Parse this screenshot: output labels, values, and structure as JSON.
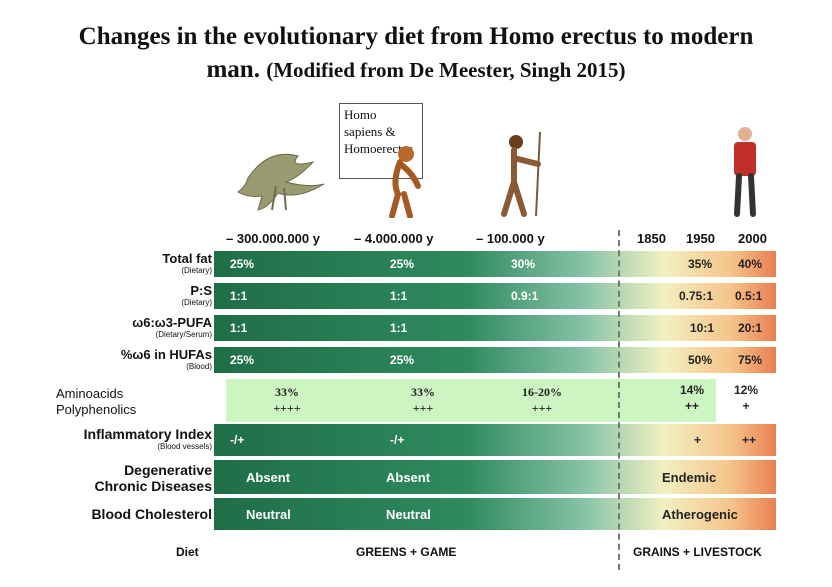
{
  "title_line1": "Changes in the evolutionary diet from Homo erectus to modern",
  "title_line2_main": "man.",
  "title_line2_paren": "(Modified from  De Meester, Singh  2015)",
  "callout": {
    "line1": "Homo",
    "line2": "sapiens &",
    "line3": "Homoerectus"
  },
  "eras": [
    "– 300.000.000 y",
    "– 4.000.000 y",
    "– 100.000 y",
    "1850",
    "1950",
    "2000"
  ],
  "rows": [
    {
      "label": "Total fat",
      "sub": "(Dietary)",
      "values": [
        "25%",
        "25%",
        "30%",
        "35%",
        "40%"
      ]
    },
    {
      "label": "P:S",
      "sub": "(Dietary)",
      "values": [
        "1:1",
        "1:1",
        "0.9:1",
        "0.75:1",
        "0.5:1"
      ]
    },
    {
      "label": "ω6:ω3-PUFA",
      "sub": "(Dietary/Serum)",
      "values": [
        "1:1",
        "1:1",
        "",
        "10:1",
        "20:1"
      ]
    },
    {
      "label": "%ω6 in HUFAs",
      "sub": "(Blood)",
      "values": [
        "25%",
        "25%",
        "",
        "50%",
        "75%"
      ]
    }
  ],
  "amino": {
    "label1": "Aminoacids",
    "label2": "Polyphenolics",
    "cols": [
      {
        "top": "33%",
        "bottom": "++++"
      },
      {
        "top": "33%",
        "bottom": "+++"
      },
      {
        "top": "16-20%",
        "bottom": "+++"
      },
      {
        "top": "14%",
        "bottom": "++"
      },
      {
        "top": "12%",
        "bottom": "+"
      }
    ]
  },
  "inflam": {
    "label": "Inflammatory Index",
    "sub": "(Blood vessels)",
    "values": [
      "-/+",
      "-/+",
      "+",
      "++"
    ]
  },
  "degen": {
    "label1": "Degenerative",
    "label2": "Chronic Diseases",
    "values": [
      "Absent",
      "Absent",
      "Endemic"
    ]
  },
  "chol": {
    "label": "Blood Cholesterol",
    "values": [
      "Neutral",
      "Neutral",
      "Atherogenic"
    ]
  },
  "diet": {
    "label": "Diet",
    "left": "GREENS + GAME",
    "right": "GRAINS + LIVESTOCK"
  }
}
